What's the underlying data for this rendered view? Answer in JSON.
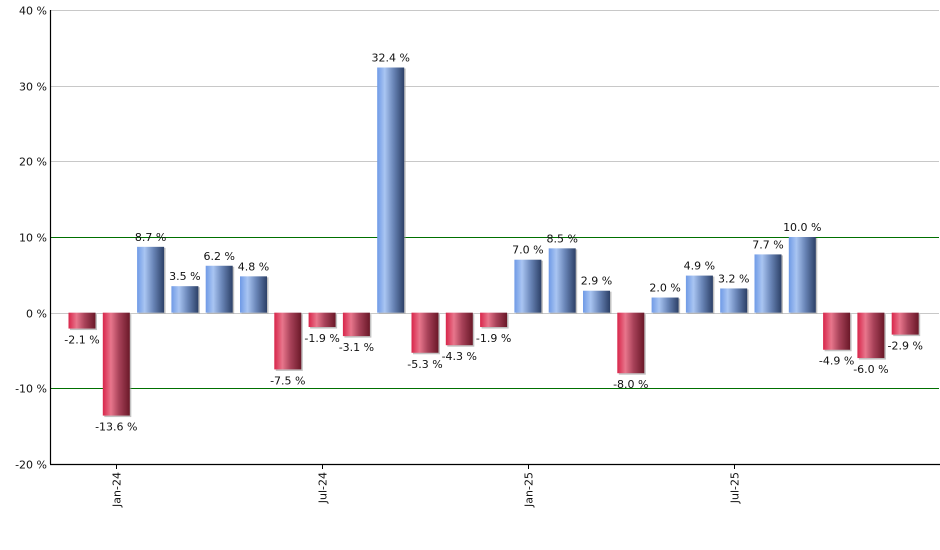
{
  "chart_data": {
    "type": "bar",
    "title": "",
    "xlabel": "",
    "ylabel": "",
    "ylim": [
      -20,
      40
    ],
    "yticks": [
      "40 %",
      "30 %",
      "20 %",
      "10 %",
      "0 %",
      "-10 %",
      "-20 %"
    ],
    "ytick_values": [
      40,
      30,
      20,
      10,
      0,
      -10,
      -20
    ],
    "xtick_labels": [
      "Jan-24",
      "Jul-24",
      "Jan-25",
      "Jul-25"
    ],
    "grid": true,
    "reference_lines": [
      10,
      -10
    ],
    "categories": [
      "Dec-23",
      "Jan-24",
      "Feb-24",
      "Mar-24",
      "Apr-24",
      "May-24",
      "Jun-24",
      "Jul-24",
      "Aug-24",
      "Sep-24",
      "Oct-24",
      "Nov-24",
      "Dec-24",
      "Jan-25",
      "Feb-25",
      "Mar-25",
      "Apr-25",
      "May-25",
      "Jun-25",
      "Jul-25",
      "Aug-25",
      "Sep-25",
      "Oct-25",
      "Nov-25",
      "Dec-25"
    ],
    "values": [
      -2.1,
      -13.6,
      8.7,
      3.5,
      6.2,
      4.8,
      -7.5,
      -1.9,
      -3.1,
      32.4,
      -5.3,
      -4.3,
      -1.9,
      7.0,
      8.5,
      2.9,
      -8.0,
      2.0,
      4.9,
      3.2,
      7.7,
      10.0,
      -4.9,
      -6.0,
      -2.9
    ],
    "labels": [
      "-2.1 %",
      "-13.6 %",
      "8.7 %",
      "3.5 %",
      "6.2 %",
      "4.8 %",
      "-7.5 %",
      "-1.9 %",
      "-3.1 %",
      "32.4 %",
      "-5.3 %",
      "-4.3 %",
      "-1.9 %",
      "7.0 %",
      "8.5 %",
      "2.9 %",
      "-8.0 %",
      "2.0 %",
      "4.9 %",
      "3.2 %",
      "7.7 %",
      "10.0 %",
      "-4.9 %",
      "-6.0 %",
      "-2.9 %"
    ],
    "colors": {
      "positive": "#6f9ae6",
      "negative": "#d8254a",
      "reference_line": "#007000",
      "grid": "#c8c8c8",
      "axis": "#000000"
    }
  }
}
